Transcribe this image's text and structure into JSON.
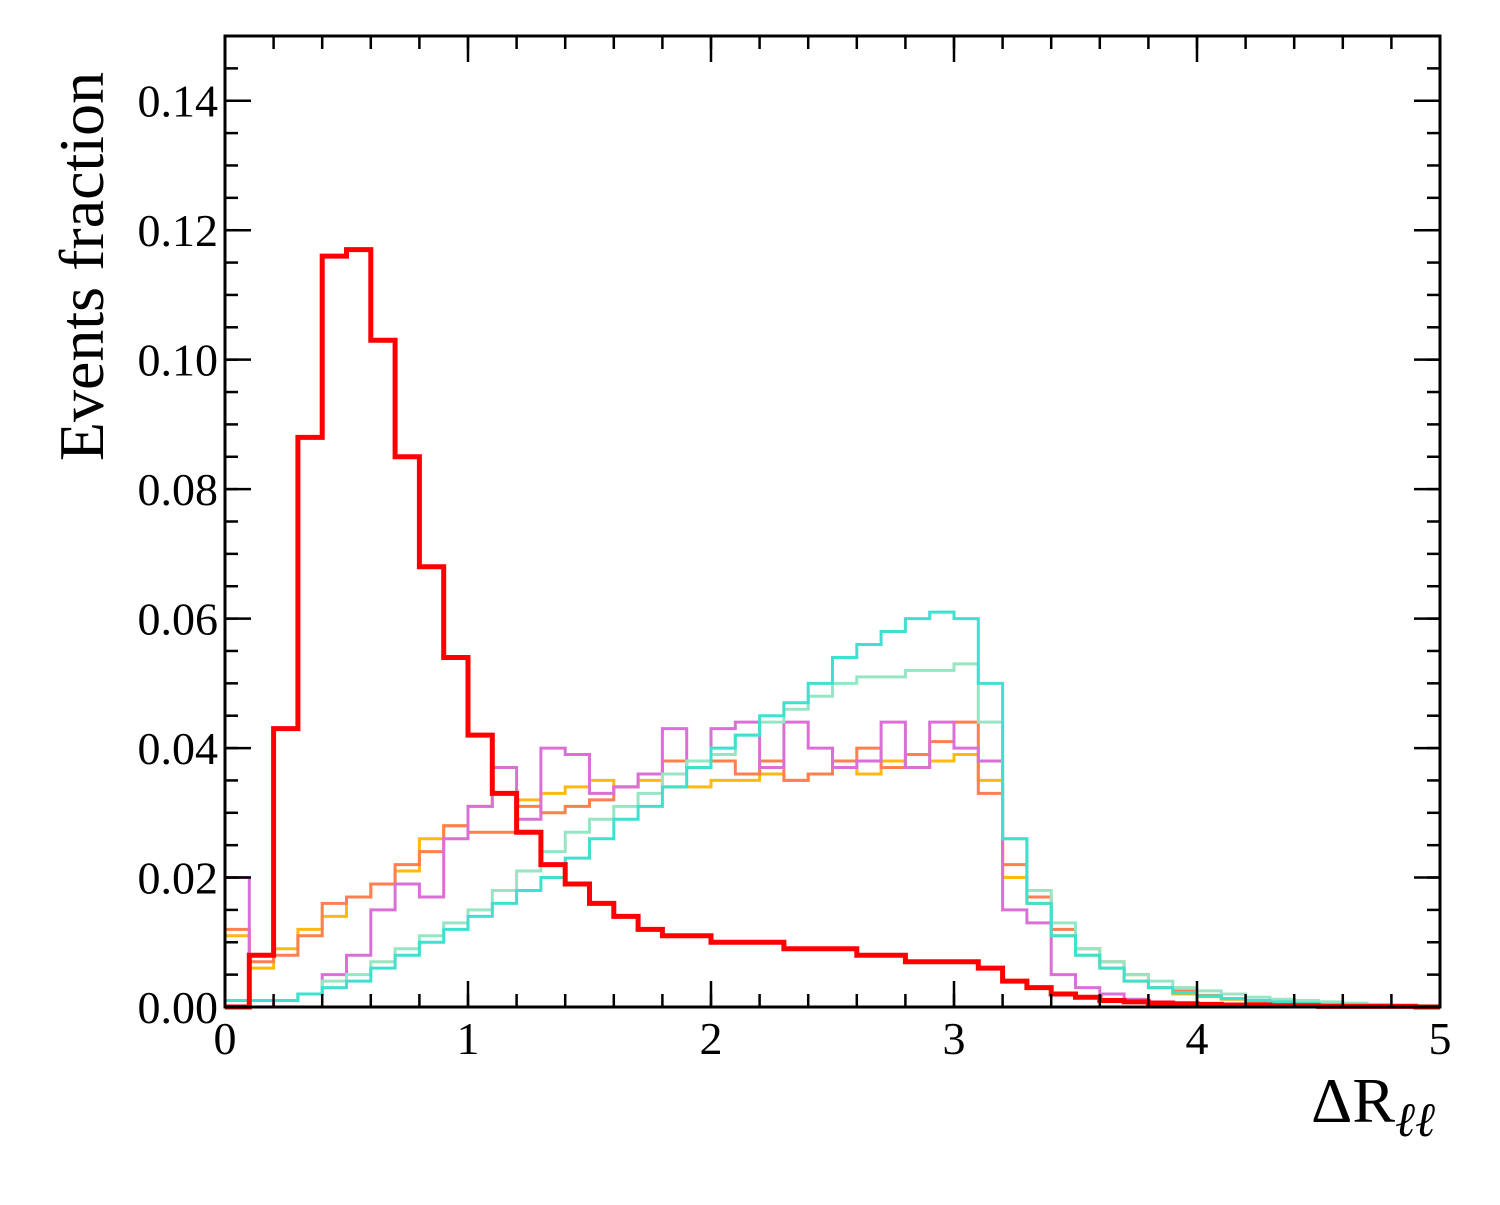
{
  "chart_data": {
    "type": "line",
    "step": true,
    "title": "",
    "ylabel": "Events fraction",
    "xlabel": {
      "main": "ΔR",
      "subscript": "ℓℓ"
    },
    "xlim": [
      0,
      5
    ],
    "ylim": [
      0,
      0.15
    ],
    "grid": false,
    "bin_edges": [
      0,
      0.1,
      0.2,
      0.3,
      0.4,
      0.5,
      0.6,
      0.7,
      0.8,
      0.9,
      1.0,
      1.1,
      1.2,
      1.3,
      1.4,
      1.5,
      1.6,
      1.7,
      1.8,
      1.9,
      2.0,
      2.1,
      2.2,
      2.3,
      2.4,
      2.5,
      2.6,
      2.7,
      2.8,
      2.9,
      3.0,
      3.1,
      3.2,
      3.3,
      3.4,
      3.5,
      3.6,
      3.7,
      3.8,
      3.9,
      4.0,
      4.1,
      4.2,
      4.3,
      4.4,
      4.5,
      4.6,
      4.7,
      4.8,
      4.9,
      5.0
    ],
    "xticks": [
      {
        "value": 0,
        "label": "0"
      },
      {
        "value": 1,
        "label": "1"
      },
      {
        "value": 2,
        "label": "2"
      },
      {
        "value": 3,
        "label": "3"
      },
      {
        "value": 4,
        "label": "4"
      },
      {
        "value": 5,
        "label": "5"
      }
    ],
    "yticks": [
      {
        "value": 0,
        "label": "0.00"
      },
      {
        "value": 0.02,
        "label": "0.02"
      },
      {
        "value": 0.04,
        "label": "0.04"
      },
      {
        "value": 0.06,
        "label": "0.06"
      },
      {
        "value": 0.08,
        "label": "0.08"
      },
      {
        "value": 0.1,
        "label": "0.10"
      },
      {
        "value": 0.12,
        "label": "0.12"
      },
      {
        "value": 0.14,
        "label": "0.14"
      }
    ],
    "x_minor_step": 0.2,
    "y_minor_step": 0.005,
    "series": [
      {
        "color": "#ffb90f",
        "width": 3,
        "values": [
          0.011,
          0.006,
          0.009,
          0.012,
          0.014,
          0.017,
          0.019,
          0.021,
          0.026,
          0.028,
          0.031,
          0.033,
          0.032,
          0.033,
          0.034,
          0.035,
          0.034,
          0.035,
          0.034,
          0.034,
          0.035,
          0.035,
          0.036,
          0.035,
          0.036,
          0.037,
          0.036,
          0.038,
          0.037,
          0.038,
          0.039,
          0.035,
          0.02,
          0.016,
          0.011,
          0.008,
          0.006,
          0.004,
          0.003,
          0.002,
          0.0016,
          0.0012,
          0.0009,
          0.0007,
          0.0005,
          0.0004,
          0.0003,
          0.0002,
          0.0001,
          0.0001
        ]
      },
      {
        "color": "#ff7f50",
        "width": 3,
        "values": [
          0.012,
          0.007,
          0.008,
          0.011,
          0.016,
          0.017,
          0.019,
          0.022,
          0.024,
          0.028,
          0.027,
          0.027,
          0.031,
          0.03,
          0.031,
          0.032,
          0.034,
          0.036,
          0.038,
          0.037,
          0.038,
          0.036,
          0.038,
          0.035,
          0.036,
          0.038,
          0.04,
          0.037,
          0.039,
          0.041,
          0.044,
          0.033,
          0.022,
          0.017,
          0.012,
          0.009,
          0.007,
          0.005,
          0.003,
          0.0025,
          0.0018,
          0.0013,
          0.0009,
          0.0006,
          0.0004,
          0.0003,
          0.0002,
          0.0001,
          0.0001,
          0.0001
        ]
      },
      {
        "color": "#da70d6",
        "width": 3,
        "values": [
          0.02,
          0.0,
          0.001,
          0.002,
          0.005,
          0.008,
          0.015,
          0.019,
          0.017,
          0.026,
          0.031,
          0.037,
          0.029,
          0.04,
          0.039,
          0.033,
          0.034,
          0.036,
          0.043,
          0.037,
          0.043,
          0.044,
          0.037,
          0.044,
          0.04,
          0.037,
          0.038,
          0.044,
          0.037,
          0.044,
          0.04,
          0.038,
          0.015,
          0.013,
          0.005,
          0.003,
          0.002,
          0.0012,
          0.0008,
          0.0005,
          0.0003,
          0.0002,
          0.0001,
          0.0001,
          0.0001,
          0.0001,
          0.0,
          0.0,
          0.0,
          0.0
        ]
      },
      {
        "color": "#98e5c3",
        "width": 3,
        "values": [
          0.001,
          0.001,
          0.001,
          0.002,
          0.004,
          0.005,
          0.007,
          0.009,
          0.011,
          0.013,
          0.015,
          0.018,
          0.021,
          0.024,
          0.027,
          0.029,
          0.031,
          0.033,
          0.036,
          0.038,
          0.039,
          0.042,
          0.044,
          0.046,
          0.048,
          0.05,
          0.051,
          0.051,
          0.052,
          0.052,
          0.053,
          0.044,
          0.026,
          0.018,
          0.013,
          0.009,
          0.007,
          0.005,
          0.004,
          0.003,
          0.0025,
          0.002,
          0.0015,
          0.0012,
          0.001,
          0.0008,
          0.0006,
          0.0004,
          0.0003,
          0.0002
        ]
      },
      {
        "color": "#40e0d0",
        "width": 3,
        "values": [
          0.001,
          0.001,
          0.001,
          0.002,
          0.003,
          0.004,
          0.006,
          0.008,
          0.01,
          0.012,
          0.014,
          0.016,
          0.018,
          0.02,
          0.023,
          0.026,
          0.029,
          0.031,
          0.034,
          0.037,
          0.04,
          0.042,
          0.045,
          0.047,
          0.05,
          0.054,
          0.056,
          0.058,
          0.06,
          0.061,
          0.06,
          0.05,
          0.026,
          0.016,
          0.011,
          0.008,
          0.006,
          0.004,
          0.003,
          0.0022,
          0.0017,
          0.0013,
          0.001,
          0.0008,
          0.0006,
          0.0004,
          0.0003,
          0.0002,
          0.0001,
          0.0001
        ]
      },
      {
        "color": "#ff0000",
        "width": 5,
        "values": [
          0.0,
          0.008,
          0.043,
          0.088,
          0.116,
          0.117,
          0.103,
          0.085,
          0.068,
          0.054,
          0.042,
          0.033,
          0.027,
          0.022,
          0.019,
          0.016,
          0.014,
          0.012,
          0.011,
          0.011,
          0.01,
          0.01,
          0.01,
          0.009,
          0.009,
          0.009,
          0.008,
          0.008,
          0.007,
          0.007,
          0.007,
          0.006,
          0.004,
          0.003,
          0.002,
          0.0015,
          0.001,
          0.0008,
          0.0006,
          0.0005,
          0.0004,
          0.0003,
          0.0003,
          0.0002,
          0.0002,
          0.0001,
          0.0001,
          0.0001,
          0.0001,
          0.0
        ]
      }
    ]
  }
}
